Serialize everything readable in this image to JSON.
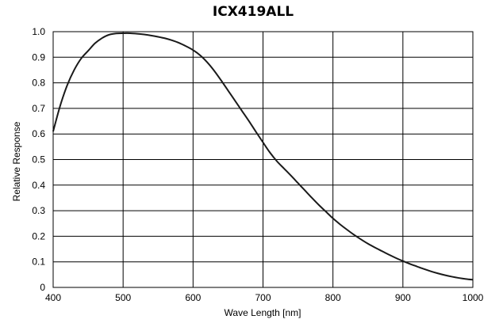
{
  "chart_data": {
    "type": "line",
    "title": "ICX419ALL",
    "xlabel": "Wave Length [nm]",
    "ylabel": "Relative Response",
    "xlim": [
      400,
      1000
    ],
    "ylim": [
      0,
      1.0
    ],
    "x_ticks": [
      "400",
      "500",
      "600",
      "700",
      "800",
      "900",
      "1000"
    ],
    "y_ticks": [
      "0",
      "0.1",
      "0.2",
      "0.3",
      "0.4",
      "0.5",
      "0.6",
      "0.7",
      "0.8",
      "0.9",
      "1.0"
    ],
    "grid": true,
    "series": [
      {
        "x": [
          400,
          410,
          420,
          430,
          440,
          450,
          460,
          470,
          480,
          490,
          500,
          510,
          520,
          530,
          540,
          550,
          560,
          570,
          580,
          590,
          600,
          610,
          620,
          630,
          640,
          650,
          660,
          670,
          680,
          690,
          700,
          710,
          720,
          730,
          740,
          750,
          760,
          770,
          780,
          790,
          800,
          810,
          820,
          830,
          840,
          850,
          860,
          870,
          880,
          890,
          900,
          910,
          920,
          930,
          940,
          950,
          960,
          970,
          980,
          990,
          1000
        ],
        "y": [
          0.61,
          0.71,
          0.79,
          0.85,
          0.895,
          0.925,
          0.955,
          0.975,
          0.988,
          0.993,
          0.994,
          0.994,
          0.992,
          0.989,
          0.985,
          0.98,
          0.974,
          0.966,
          0.956,
          0.943,
          0.928,
          0.908,
          0.881,
          0.848,
          0.81,
          0.77,
          0.73,
          0.69,
          0.65,
          0.608,
          0.567,
          0.527,
          0.493,
          0.465,
          0.437,
          0.408,
          0.379,
          0.35,
          0.322,
          0.296,
          0.27,
          0.247,
          0.226,
          0.206,
          0.188,
          0.171,
          0.156,
          0.142,
          0.128,
          0.115,
          0.103,
          0.092,
          0.082,
          0.072,
          0.063,
          0.055,
          0.048,
          0.042,
          0.037,
          0.033,
          0.03
        ]
      }
    ]
  }
}
